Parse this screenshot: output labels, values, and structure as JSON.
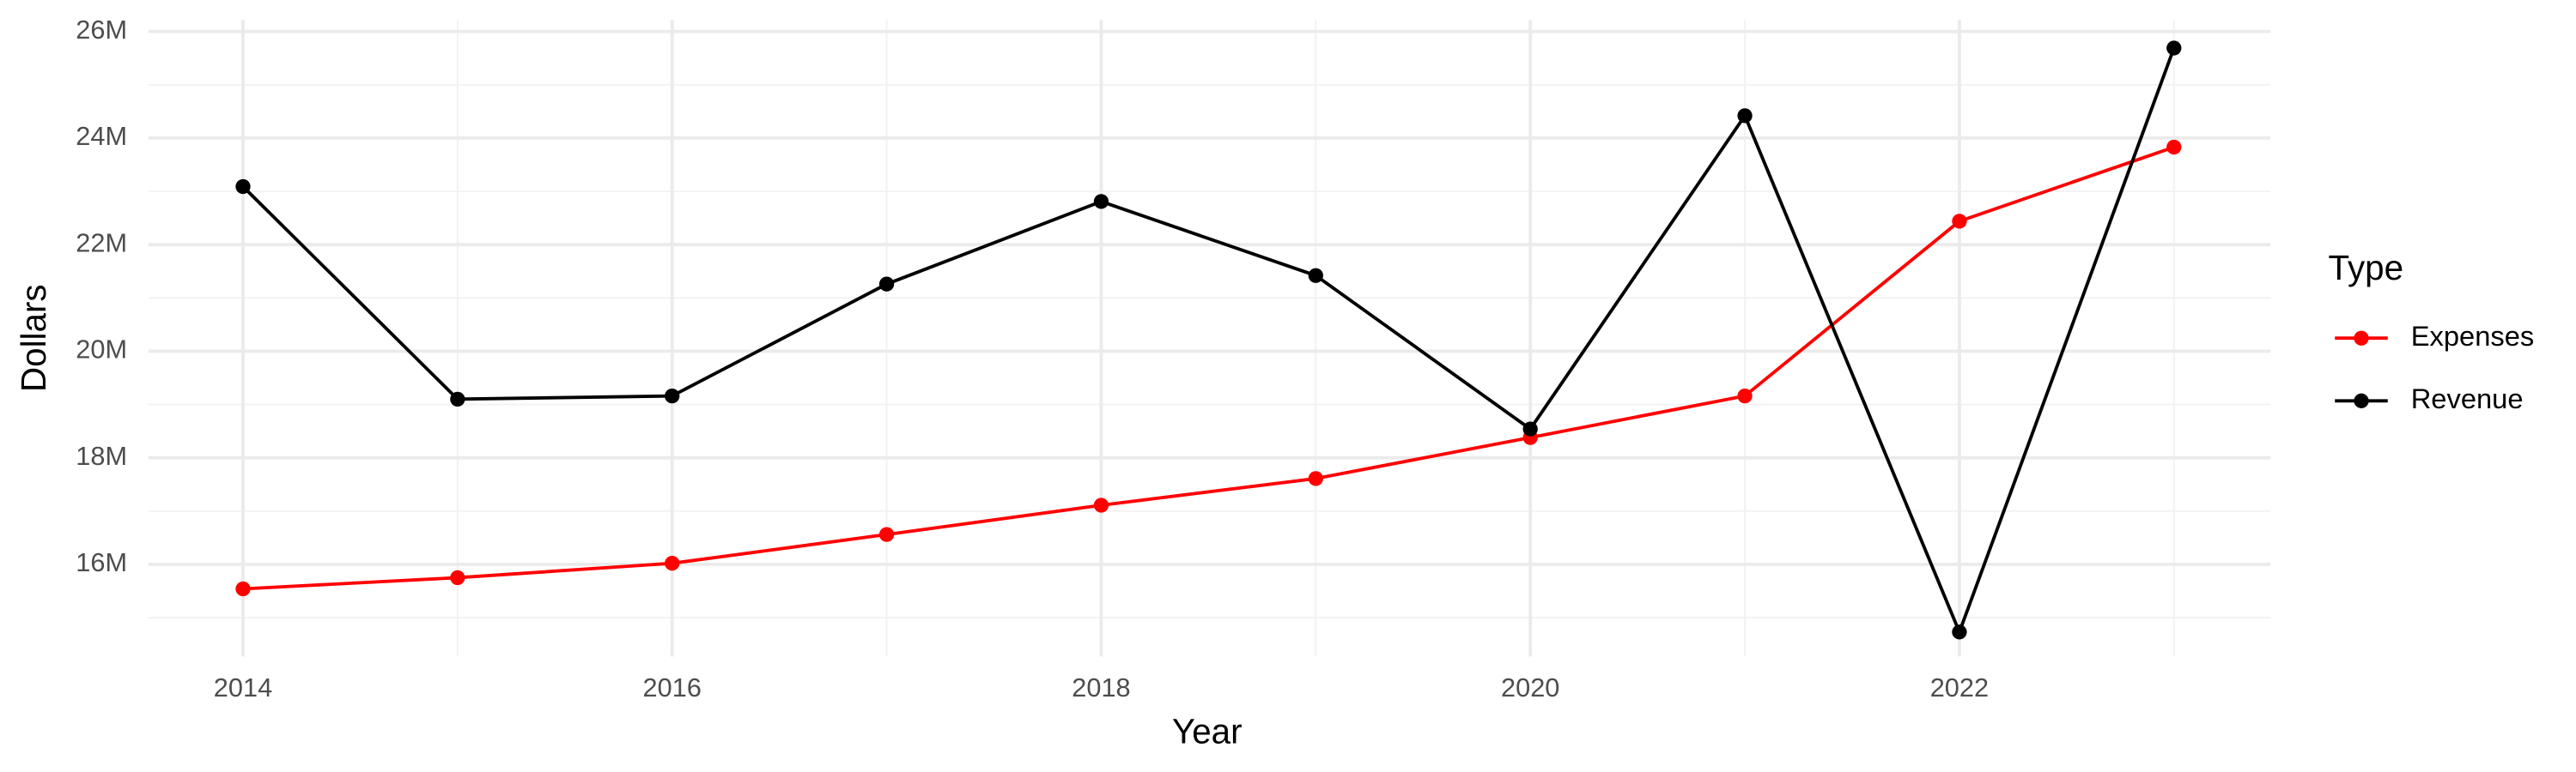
{
  "chart_data": {
    "type": "line",
    "x_label": "Year",
    "y_label": "Dollars",
    "legend_title": "Type",
    "x": [
      2014,
      2015,
      2016,
      2017,
      2018,
      2019,
      2020,
      2021,
      2022,
      2023
    ],
    "series": [
      {
        "name": "Expenses",
        "color": "#ff0000",
        "values": [
          15540000,
          15750000,
          16020000,
          16560000,
          17110000,
          17610000,
          18380000,
          19160000,
          22440000,
          23830000
        ]
      },
      {
        "name": "Revenue",
        "color": "#000000",
        "values": [
          23090000,
          19100000,
          19160000,
          21260000,
          22810000,
          21420000,
          18540000,
          24420000,
          14730000,
          25690000
        ]
      }
    ],
    "xlim": [
      2013.56,
      2023.45
    ],
    "xticks": [
      2014,
      2016,
      2018,
      2020,
      2022
    ],
    "minor_xticks": [
      2015,
      2017,
      2019,
      2021,
      2023
    ],
    "ylim": [
      14270000,
      26220000
    ],
    "yticks": [
      {
        "value": 16000000,
        "label": "16M"
      },
      {
        "value": 18000000,
        "label": "18M"
      },
      {
        "value": 20000000,
        "label": "20M"
      },
      {
        "value": 22000000,
        "label": "22M"
      },
      {
        "value": 24000000,
        "label": "24M"
      },
      {
        "value": 26000000,
        "label": "26M"
      }
    ],
    "minor_yticks": [
      15000000,
      17000000,
      19000000,
      21000000,
      23000000,
      25000000
    ],
    "grid": true,
    "legend": "right"
  }
}
